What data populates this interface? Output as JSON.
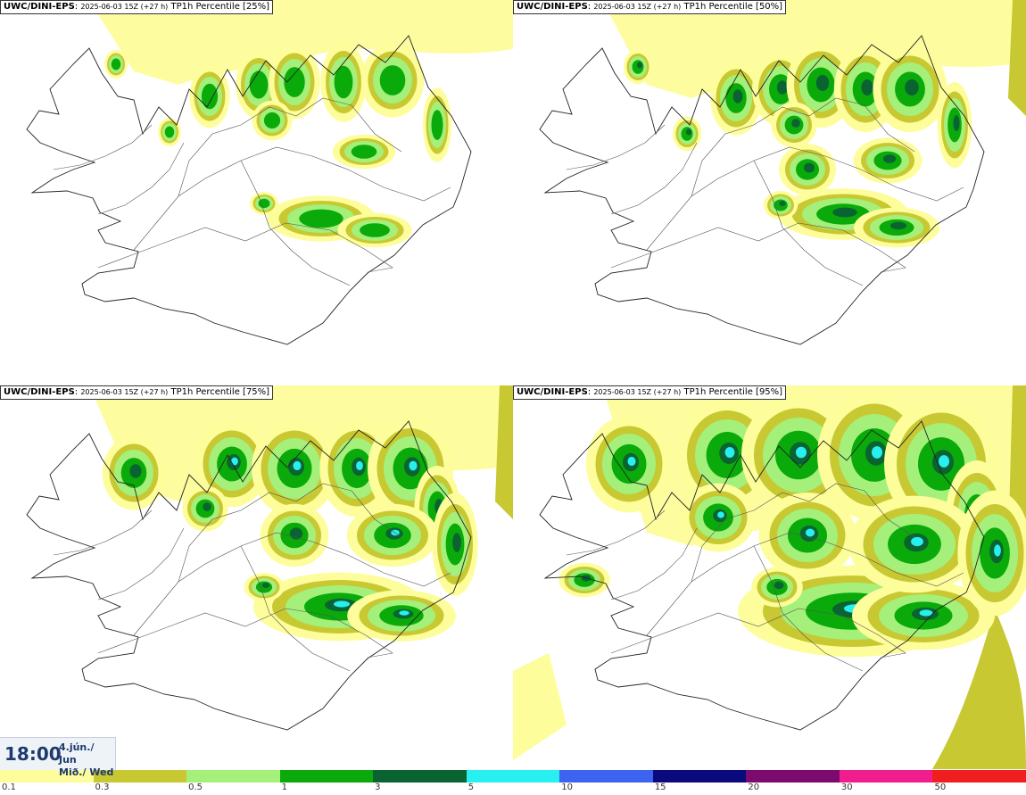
{
  "panels": [
    {
      "model": "UWC/DINI-EPS",
      "run": "2025-06-03 15Z (+27 h)",
      "field": "TP1h Percentile",
      "pct": "[25%]",
      "level": 0
    },
    {
      "model": "UWC/DINI-EPS",
      "run": "2025-06-03 15Z (+27 h)",
      "field": "TP1h Percentile",
      "pct": "[50%]",
      "level": 1
    },
    {
      "model": "UWC/DINI-EPS",
      "run": "2025-06-03 15Z (+27 h)",
      "field": "TP1h Percentile",
      "pct": "[75%]",
      "level": 2
    },
    {
      "model": "UWC/DINI-EPS",
      "run": "2025-06-03 15Z (+27 h)",
      "field": "TP1h Percentile",
      "pct": "[95%]",
      "level": 3
    }
  ],
  "valid_time": {
    "time": "18:00",
    "date_line1": "4.jún./ Jun",
    "date_line2": "Mið./ Wed"
  },
  "legend": {
    "colors": [
      "#fdfd9b",
      "#c8c832",
      "#a4f07a",
      "#0aaa0a",
      "#0a6432",
      "#28f0f0",
      "#3c64f0",
      "#0a0a7d",
      "#7d0a6e",
      "#f01e8c",
      "#f01e1e"
    ],
    "labels": [
      "0.1",
      "0.3",
      "0.5",
      "1",
      "3",
      "5",
      "10",
      "15",
      "20",
      "30",
      "50"
    ]
  }
}
